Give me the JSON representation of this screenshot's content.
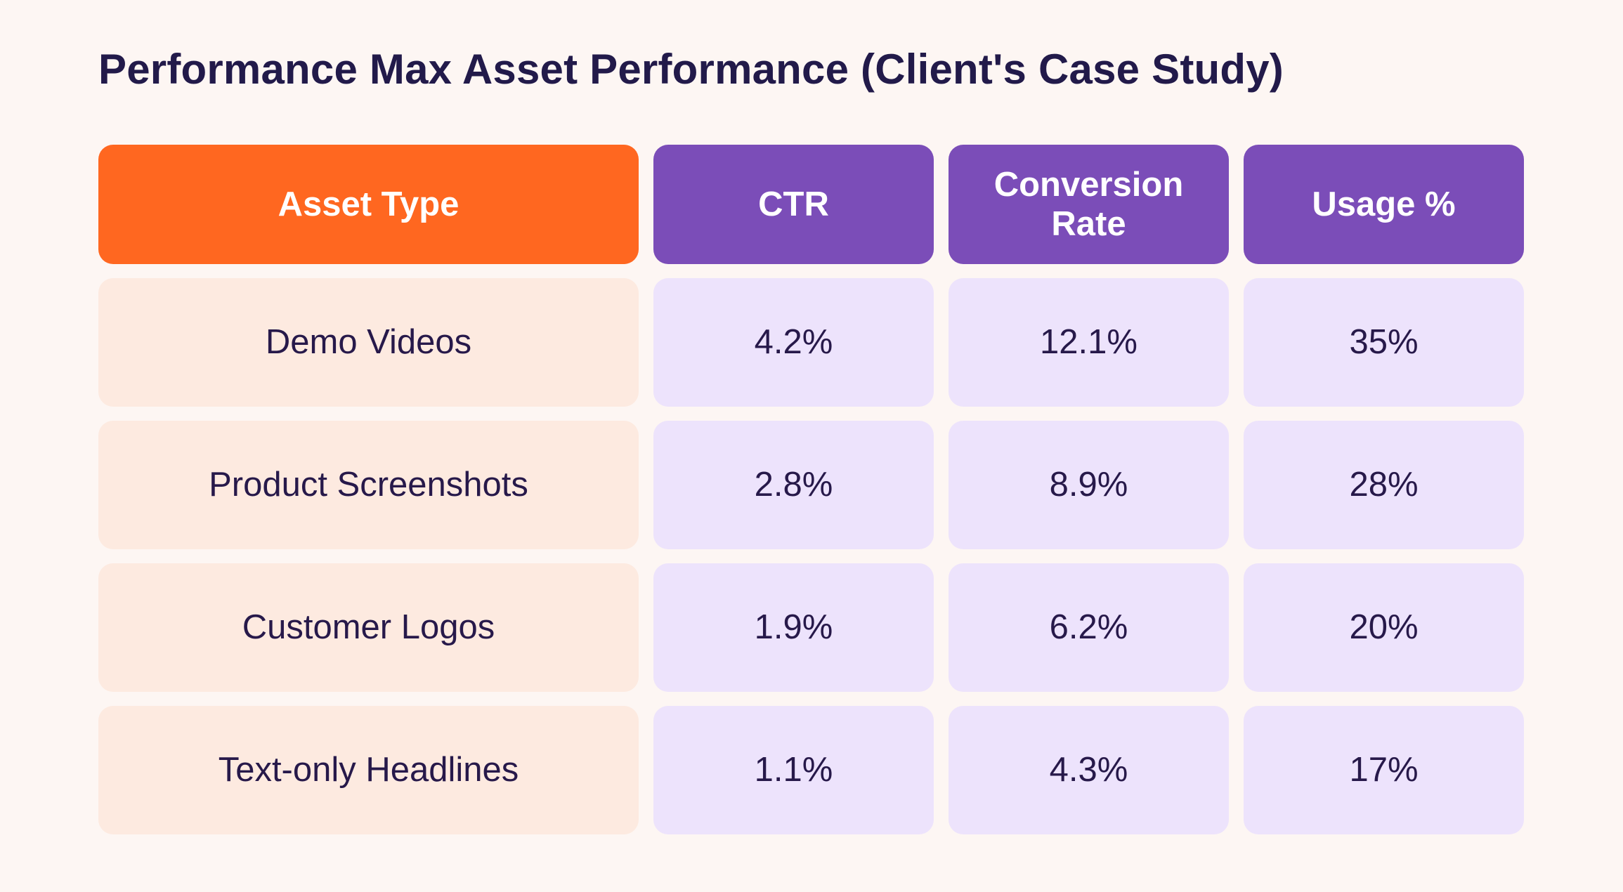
{
  "colors": {
    "background": "#FDF6F3",
    "title_text": "#221A4A",
    "header_first_bg": "#FF6720",
    "header_bg": "#7B4DB8",
    "label_cell_bg": "#FDEAE0",
    "value_cell_bg": "#EDE3FC",
    "body_text": "#27194A"
  },
  "chart_data": {
    "type": "table",
    "title": "Performance Max Asset Performance (Client's Case Study)",
    "columns": [
      "Asset Type",
      "CTR",
      "Conversion Rate",
      "Usage %"
    ],
    "rows": [
      [
        "Demo Videos",
        "4.2%",
        "12.1%",
        "35%"
      ],
      [
        "Product Screenshots",
        "2.8%",
        "8.9%",
        "28%"
      ],
      [
        "Customer Logos",
        "1.9%",
        "6.2%",
        "20%"
      ],
      [
        "Text-only Headlines",
        "1.1%",
        "4.3%",
        "17%"
      ]
    ]
  }
}
